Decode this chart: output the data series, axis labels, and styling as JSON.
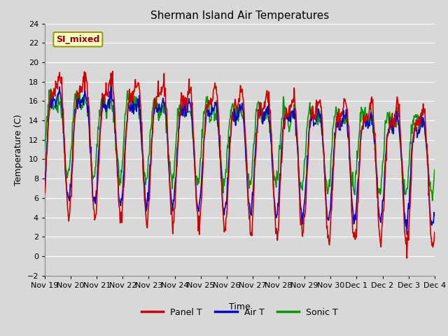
{
  "title": "Sherman Island Air Temperatures",
  "xlabel": "Time",
  "ylabel": "Temperature (C)",
  "ylim": [
    -2,
    24
  ],
  "yticks": [
    -2,
    0,
    2,
    4,
    6,
    8,
    10,
    12,
    14,
    16,
    18,
    20,
    22,
    24
  ],
  "legend_label": "SI_mixed",
  "series_names": [
    "Panel T",
    "Air T",
    "Sonic T"
  ],
  "colors": [
    "#cc0000",
    "#0000cc",
    "#009900"
  ],
  "line_width": 1.2,
  "bg_color": "#d8d8d8",
  "plot_bg_color": "#d8d8d8",
  "grid_color": "#ffffff",
  "title_fontsize": 11,
  "axis_fontsize": 9,
  "tick_fontsize": 8,
  "legend_fontsize": 9,
  "n_points": 720,
  "x_start": 0,
  "x_end": 15,
  "xtick_positions": [
    0,
    1,
    2,
    3,
    4,
    5,
    6,
    7,
    8,
    9,
    10,
    11,
    12,
    13,
    14,
    15
  ],
  "xtick_labels": [
    "Nov 19",
    "Nov 20",
    "Nov 21",
    "Nov 22",
    "Nov 23",
    "Nov 24",
    "Nov 25",
    "Nov 26",
    "Nov 27",
    "Nov 28",
    "Nov 29",
    "Nov 30",
    "Dec 1",
    "Dec 2",
    "Dec 3",
    "Dec 4"
  ]
}
